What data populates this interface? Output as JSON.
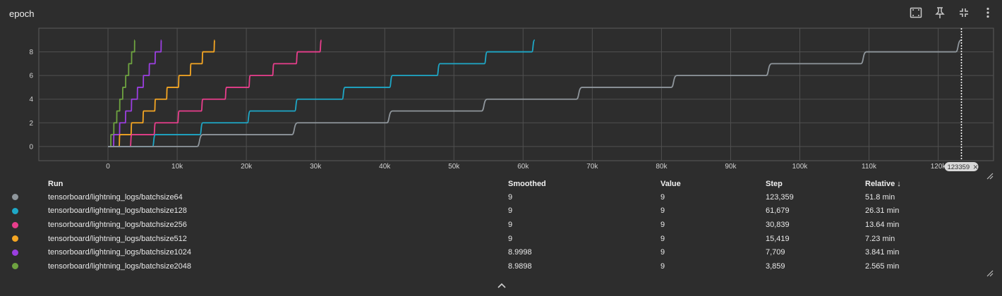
{
  "card": {
    "title": "epoch"
  },
  "toolbar": {
    "buttons": [
      {
        "icon": "fit-domain-icon",
        "label": "Fit domain to data"
      },
      {
        "icon": "pin-icon",
        "label": "Pin card"
      },
      {
        "icon": "collapse-icon",
        "label": "Toggle full size"
      },
      {
        "icon": "more-vert-icon",
        "label": "More"
      }
    ]
  },
  "chart_data": {
    "type": "line",
    "title": "epoch",
    "xlabel": "",
    "ylabel": "",
    "xlim": [
      -10000,
      128000
    ],
    "ylim": [
      -1.2,
      10
    ],
    "xticks": [
      0,
      10000,
      20000,
      30000,
      40000,
      50000,
      60000,
      70000,
      80000,
      90000,
      100000,
      110000,
      120000
    ],
    "xtick_labels": [
      "0",
      "10k",
      "20k",
      "30k",
      "40k",
      "50k",
      "60k",
      "70k",
      "80k",
      "90k",
      "100k",
      "110k",
      "120k"
    ],
    "yticks": [
      0,
      2,
      4,
      6,
      8
    ],
    "ytick_labels": [
      "0",
      "2",
      "4",
      "6",
      "8"
    ],
    "grid": true,
    "cursor": {
      "step": 123359,
      "label": "123359"
    },
    "series": [
      {
        "name": "tensorboard/lightning_logs/batchsize64",
        "color": "#8f969c",
        "max_step": 123359
      },
      {
        "name": "tensorboard/lightning_logs/batchsize128",
        "color": "#1ea8c7",
        "max_step": 61679
      },
      {
        "name": "tensorboard/lightning_logs/batchsize256",
        "color": "#e83e8c",
        "max_step": 30839
      },
      {
        "name": "tensorboard/lightning_logs/batchsize512",
        "color": "#f5a623",
        "max_step": 15419
      },
      {
        "name": "tensorboard/lightning_logs/batchsize1024",
        "color": "#9b3fe0",
        "max_step": 7709
      },
      {
        "name": "tensorboard/lightning_logs/batchsize2048",
        "color": "#6ea340",
        "max_step": 3859
      }
    ]
  },
  "table": {
    "headers": {
      "run": "Run",
      "smoothed": "Smoothed",
      "value": "Value",
      "step": "Step",
      "relative": "Relative"
    },
    "sort_indicator": "↓",
    "rows": [
      {
        "run": "tensorboard/lightning_logs/batchsize64",
        "smoothed": "9",
        "value": "9",
        "step": "123,359",
        "relative": "51.8 min",
        "color": "#8f969c"
      },
      {
        "run": "tensorboard/lightning_logs/batchsize128",
        "smoothed": "9",
        "value": "9",
        "step": "61,679",
        "relative": "26.31 min",
        "color": "#1ea8c7"
      },
      {
        "run": "tensorboard/lightning_logs/batchsize256",
        "smoothed": "9",
        "value": "9",
        "step": "30,839",
        "relative": "13.64 min",
        "color": "#e83e8c"
      },
      {
        "run": "tensorboard/lightning_logs/batchsize512",
        "smoothed": "9",
        "value": "9",
        "step": "15,419",
        "relative": "7.23 min",
        "color": "#f5a623"
      },
      {
        "run": "tensorboard/lightning_logs/batchsize1024",
        "smoothed": "8.9998",
        "value": "9",
        "step": "7,709",
        "relative": "3.841 min",
        "color": "#9b3fe0"
      },
      {
        "run": "tensorboard/lightning_logs/batchsize2048",
        "smoothed": "8.9898",
        "value": "9",
        "step": "3,859",
        "relative": "2.565 min",
        "color": "#6ea340"
      }
    ]
  }
}
